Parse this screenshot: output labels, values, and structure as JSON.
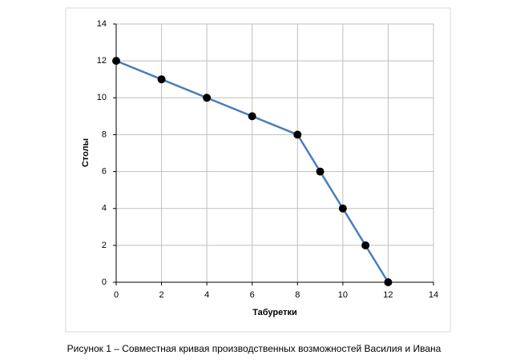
{
  "chart_data": {
    "type": "line",
    "x_label": "Табуретки",
    "y_label": "Столы",
    "x": [
      0,
      2,
      4,
      6,
      8,
      9,
      10,
      11,
      12
    ],
    "series": [
      {
        "color": "#4a7ebb",
        "marker_color": "#000000",
        "values": [
          12,
          11,
          10,
          9,
          8,
          6,
          4,
          2,
          0
        ]
      }
    ],
    "xlim": [
      0,
      14
    ],
    "xticks": [
      0,
      2,
      4,
      6,
      8,
      10,
      12,
      14
    ],
    "ylim": [
      0,
      14
    ],
    "yticks": [
      0,
      2,
      4,
      6,
      8,
      10,
      12,
      14
    ],
    "grid": true
  },
  "caption": "Рисунок 1 – Совместная кривая производственных возможностей Василия и Ивана"
}
